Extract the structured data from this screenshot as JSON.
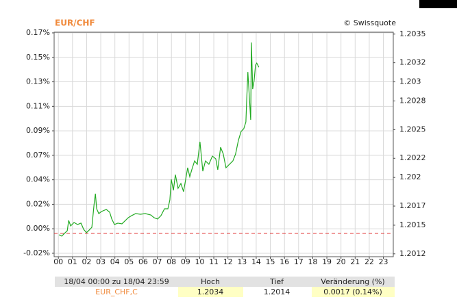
{
  "chart_data": {
    "type": "line",
    "title": "EUR/CHF",
    "source": "© Swissquote",
    "x": [
      0.05,
      0.24,
      0.48,
      0.63,
      0.73,
      0.87,
      1.11,
      1.36,
      1.6,
      1.79,
      1.99,
      2.18,
      2.37,
      2.52,
      2.62,
      2.71,
      2.86,
      3.05,
      3.39,
      3.63,
      3.78,
      3.97,
      4.21,
      4.5,
      4.75,
      4.94,
      5.18,
      5.47,
      5.81,
      6.15,
      6.54,
      6.78,
      7.02,
      7.26,
      7.51,
      7.75,
      7.89,
      7.99,
      8.14,
      8.28,
      8.47,
      8.67,
      8.86,
      9.01,
      9.15,
      9.3,
      9.44,
      9.64,
      9.83,
      10.02,
      10.22,
      10.41,
      10.65,
      10.9,
      11.14,
      11.28,
      11.48,
      11.67,
      11.86,
      12.11,
      12.35,
      12.54,
      12.74,
      12.93,
      13.12,
      13.27,
      13.32,
      13.41,
      13.51,
      13.61,
      13.66,
      13.75,
      13.85,
      13.95,
      14.04,
      14.19
    ],
    "series": [
      {
        "name": "EUR_CHF,C",
        "color": "#22aa22",
        "values": [
          -0.0029,
          -0.0041,
          -0.0011,
          0.0006,
          0.0096,
          0.0048,
          0.0078,
          0.006,
          0.0072,
          0.0018,
          -0.0011,
          0.0012,
          0.0036,
          0.0227,
          0.0328,
          0.0197,
          0.0155,
          0.0173,
          0.0191,
          0.0167,
          0.0108,
          0.006,
          0.0072,
          0.0066,
          0.0096,
          0.0119,
          0.0137,
          0.0155,
          0.0149,
          0.0155,
          0.0143,
          0.0119,
          0.0108,
          0.0137,
          0.0197,
          0.0197,
          0.0274,
          0.0453,
          0.0357,
          0.0494,
          0.0375,
          0.0417,
          0.0346,
          0.0453,
          0.0554,
          0.0476,
          0.0536,
          0.0613,
          0.0584,
          0.078,
          0.0524,
          0.0613,
          0.0584,
          0.0655,
          0.0631,
          0.0536,
          0.0732,
          0.0673,
          0.0554,
          0.0584,
          0.0613,
          0.0673,
          0.0792,
          0.0869,
          0.0893,
          0.0952,
          0.1119,
          0.1387,
          0.1179,
          0.097,
          0.1643,
          0.1238,
          0.1309,
          0.1446,
          0.1464,
          0.1428
        ]
      }
    ],
    "xlim": [
      -0.3,
      23.7
    ],
    "xticks": [
      {
        "value": 0,
        "label": "00"
      },
      {
        "value": 1,
        "label": "01"
      },
      {
        "value": 2,
        "label": "02"
      },
      {
        "value": 3,
        "label": "03"
      },
      {
        "value": 4,
        "label": "04"
      },
      {
        "value": 5,
        "label": "05"
      },
      {
        "value": 6,
        "label": "06"
      },
      {
        "value": 7,
        "label": "07"
      },
      {
        "value": 8,
        "label": "08"
      },
      {
        "value": 9,
        "label": "09"
      },
      10,
      11,
      12,
      13,
      14,
      15,
      16,
      17,
      18,
      19,
      20,
      21,
      22,
      23
    ],
    "ylim": [
      -0.022,
      0.1733
    ],
    "yticks": [
      {
        "value": -0.019,
        "label": "-0.02%"
      },
      {
        "value": 0.0023,
        "label": "0.00%"
      },
      {
        "value": 0.0236,
        "label": "0.02%"
      },
      {
        "value": 0.0449,
        "label": "0.04%"
      },
      {
        "value": 0.0662,
        "label": "0.07%"
      },
      {
        "value": 0.0875,
        "label": "0.09%"
      },
      {
        "value": 0.1088,
        "label": "0.11%"
      },
      {
        "value": 0.1301,
        "label": "0.13%"
      },
      {
        "value": 0.1514,
        "label": "0.15%"
      },
      {
        "value": 0.1727,
        "label": "0.17%"
      }
    ],
    "y2lim": [
      1.20117,
      1.20352
    ],
    "y2ticks": [
      1.2012,
      1.2015,
      1.2017,
      1.202,
      1.2022,
      1.2025,
      1.2028,
      1.203,
      1.2032,
      1.2035
    ],
    "baseline": -0.0017,
    "baseline_color": "#e03030",
    "grid": true
  },
  "table": {
    "header": [
      "18/04 00:00 zu 18/04 23:59",
      "Hoch",
      "Tief",
      "Veränderung (%)"
    ],
    "rows": [
      [
        "EUR_CHF,C",
        "1.2034",
        "1.2014",
        "0.0017 (0.14%)"
      ]
    ]
  }
}
